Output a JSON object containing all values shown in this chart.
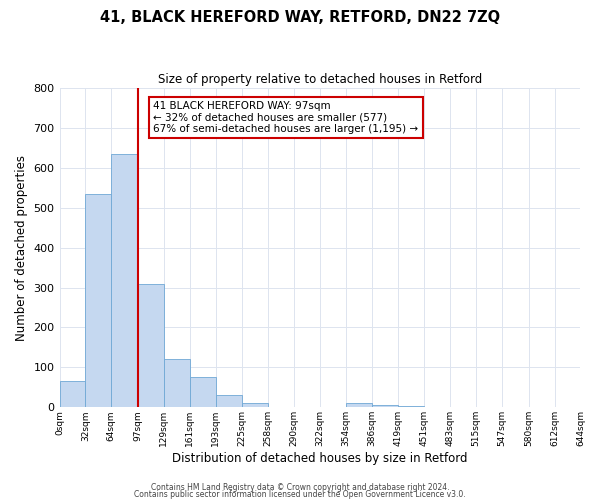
{
  "title": "41, BLACK HEREFORD WAY, RETFORD, DN22 7ZQ",
  "subtitle": "Size of property relative to detached houses in Retford",
  "xlabel": "Distribution of detached houses by size in Retford",
  "ylabel": "Number of detached properties",
  "footer_line1": "Contains HM Land Registry data © Crown copyright and database right 2024.",
  "footer_line2": "Contains public sector information licensed under the Open Government Licence v3.0.",
  "bin_edges": [
    0,
    32,
    64,
    97,
    129,
    161,
    193,
    225,
    258,
    290,
    322,
    354,
    386,
    419,
    451,
    483,
    515,
    547,
    580,
    612,
    644
  ],
  "bin_labels": [
    "0sqm",
    "32sqm",
    "64sqm",
    "97sqm",
    "129sqm",
    "161sqm",
    "193sqm",
    "225sqm",
    "258sqm",
    "290sqm",
    "322sqm",
    "354sqm",
    "386sqm",
    "419sqm",
    "451sqm",
    "483sqm",
    "515sqm",
    "547sqm",
    "580sqm",
    "612sqm",
    "644sqm"
  ],
  "counts": [
    65,
    535,
    635,
    310,
    120,
    75,
    30,
    12,
    0,
    0,
    0,
    10,
    5,
    2,
    1,
    0,
    0,
    0,
    0,
    0
  ],
  "vline_x": 97,
  "vline_color": "#cc0000",
  "bar_color": "#c5d8f0",
  "bar_edge_color": "#6fa8d5",
  "annotation_title": "41 BLACK HEREFORD WAY: 97sqm",
  "annotation_line1": "← 32% of detached houses are smaller (577)",
  "annotation_line2": "67% of semi-detached houses are larger (1,195) →",
  "annotation_box_facecolor": "#ffffff",
  "annotation_box_edgecolor": "#cc0000",
  "ylim": [
    0,
    800
  ],
  "yticks": [
    0,
    100,
    200,
    300,
    400,
    500,
    600,
    700,
    800
  ],
  "background_color": "#ffffff",
  "grid_color": "#dde4ef",
  "title_fontsize": 10.5,
  "subtitle_fontsize": 8.5
}
